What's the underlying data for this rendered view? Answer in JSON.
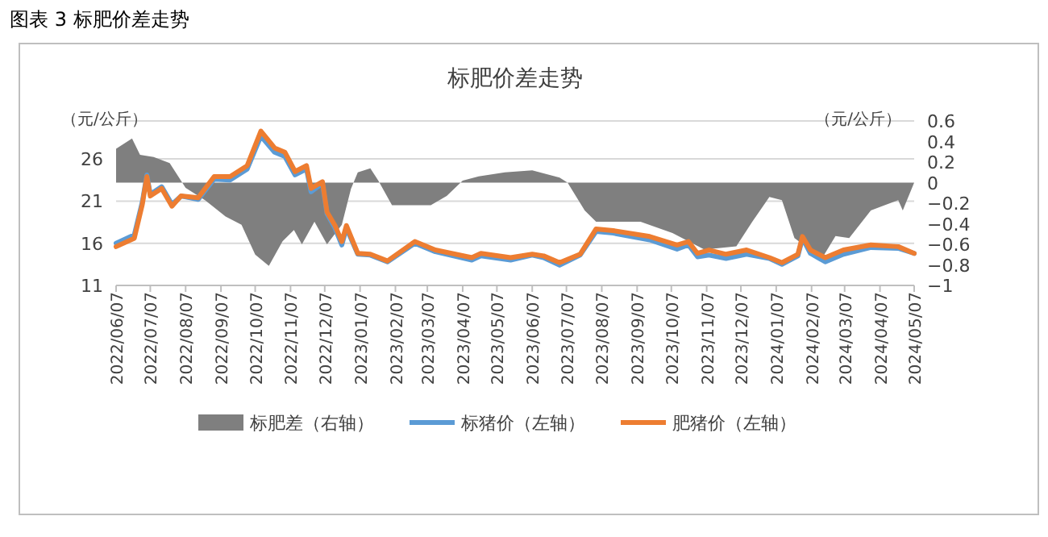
{
  "chart_data": {
    "type": "line",
    "title": "图表 3 标肥价差走势",
    "subtitle": "标肥价差走势",
    "ylabel": "（元/公斤）",
    "y2label": "（元/公斤）",
    "xlim": [
      "2022-06-07",
      "2024-05-07"
    ],
    "xticks": [
      {
        "value": "2022-06-07",
        "label": "2022/06/07"
      },
      {
        "value": "2022-07-07",
        "label": "2022/07/07"
      },
      {
        "value": "2022-08-07",
        "label": "2022/08/07"
      },
      {
        "value": "2022-09-07",
        "label": "2022/09/07"
      },
      {
        "value": "2022-10-07",
        "label": "2022/10/07"
      },
      {
        "value": "2022-11-07",
        "label": "2022/11/07"
      },
      {
        "value": "2022-12-07",
        "label": "2022/12/07"
      },
      {
        "value": "2023-01-07",
        "label": "2023/01/07"
      },
      {
        "value": "2023-02-07",
        "label": "2023/02/07"
      },
      {
        "value": "2023-03-07",
        "label": "2023/03/07"
      },
      {
        "value": "2023-04-07",
        "label": "2023/04/07"
      },
      {
        "value": "2023-05-07",
        "label": "2023/05/07"
      },
      {
        "value": "2023-06-07",
        "label": "2023/06/07"
      },
      {
        "value": "2023-07-07",
        "label": "2023/07/07"
      },
      {
        "value": "2023-08-07",
        "label": "2023/08/07"
      },
      {
        "value": "2023-09-07",
        "label": "2023/09/07"
      },
      {
        "value": "2023-10-07",
        "label": "2023/10/07"
      },
      {
        "value": "2023-11-07",
        "label": "2023/11/07"
      },
      {
        "value": "2023-12-07",
        "label": "2023/12/07"
      },
      {
        "value": "2024-01-07",
        "label": "2024/01/07"
      },
      {
        "value": "2024-02-07",
        "label": "2024/02/07"
      },
      {
        "value": "2024-03-07",
        "label": "2024/03/07"
      },
      {
        "value": "2024-04-07",
        "label": "2024/04/07"
      },
      {
        "value": "2024-05-07",
        "label": "2024/05/07"
      }
    ],
    "ylim": [
      11,
      30.5
    ],
    "yticks": [
      11,
      16,
      21,
      26
    ],
    "y2lim": [
      -1,
      0.6
    ],
    "y2ticks": [
      {
        "value": -1,
        "label": "−1"
      },
      {
        "value": -0.8,
        "label": "−0.8"
      },
      {
        "value": -0.6,
        "label": "−0.6"
      },
      {
        "value": -0.4,
        "label": "−0.4"
      },
      {
        "value": -0.2,
        "label": "−0.2"
      },
      0,
      0.2,
      0.4,
      0.6
    ],
    "grid": "y",
    "legend": "bottom",
    "series": [
      {
        "name": "标肥差（右轴）",
        "type": "area",
        "axis": "y2",
        "color": "#7f7f7f",
        "x": [
          "2022-06-07",
          "2022-06-21",
          "2022-06-28",
          "2022-07-10",
          "2022-07-24",
          "2022-08-07",
          "2022-08-24",
          "2022-09-11",
          "2022-09-25",
          "2022-10-07",
          "2022-10-19",
          "2022-10-31",
          "2022-11-10",
          "2022-11-17",
          "2022-11-28",
          "2022-12-09",
          "2022-12-22",
          "2022-12-30",
          "2023-01-05",
          "2023-01-16",
          "2023-01-23",
          "2023-02-04",
          "2023-02-24",
          "2023-03-10",
          "2023-03-24",
          "2023-04-07",
          "2023-04-21",
          "2023-05-14",
          "2023-06-07",
          "2023-07-01",
          "2023-07-08",
          "2023-07-23",
          "2023-08-02",
          "2023-09-10",
          "2023-10-08",
          "2023-11-05",
          "2023-12-03",
          "2023-12-17",
          "2024-01-01",
          "2024-01-12",
          "2024-01-23",
          "2024-02-16",
          "2024-02-28",
          "2024-03-11",
          "2024-03-30",
          "2024-04-23",
          "2024-04-27",
          "2024-05-07"
        ],
        "values": [
          0.33,
          0.43,
          0.27,
          0.25,
          0.19,
          -0.05,
          -0.17,
          -0.33,
          -0.41,
          -0.7,
          -0.81,
          -0.57,
          -0.46,
          -0.6,
          -0.38,
          -0.6,
          -0.41,
          -0.06,
          0.1,
          0.14,
          0.02,
          -0.22,
          -0.22,
          -0.22,
          -0.13,
          0.02,
          0.06,
          0.1,
          0.12,
          0.05,
          0,
          -0.27,
          -0.38,
          -0.38,
          -0.49,
          -0.65,
          -0.62,
          -0.38,
          -0.14,
          -0.17,
          -0.54,
          -0.74,
          -0.52,
          -0.54,
          -0.27,
          -0.17,
          -0.27,
          0
        ]
      },
      {
        "name": "标猪价（左轴）",
        "color": "#5b9bd5",
        "x": [
          "2022-06-07",
          "2022-06-23",
          "2022-06-30",
          "2022-07-04",
          "2022-07-07",
          "2022-07-17",
          "2022-07-26",
          "2022-08-03",
          "2022-08-18",
          "2022-09-01",
          "2022-09-15",
          "2022-09-30",
          "2022-10-12",
          "2022-10-24",
          "2022-11-02",
          "2022-11-11",
          "2022-11-21",
          "2022-11-25",
          "2022-12-05",
          "2022-12-09",
          "2022-12-16",
          "2022-12-22",
          "2022-12-26",
          "2023-01-05",
          "2023-01-16",
          "2023-01-31",
          "2023-02-24",
          "2023-03-14",
          "2023-04-15",
          "2023-04-23",
          "2023-05-19",
          "2023-06-07",
          "2023-06-17",
          "2023-07-01",
          "2023-07-19",
          "2023-08-02",
          "2023-08-17",
          "2023-09-18",
          "2023-10-12",
          "2023-10-22",
          "2023-10-30",
          "2023-11-09",
          "2023-11-24",
          "2023-12-12",
          "2024-01-01",
          "2024-01-12",
          "2024-01-26",
          "2024-01-30",
          "2024-02-06",
          "2024-02-19",
          "2024-03-06",
          "2024-03-30",
          "2024-04-23",
          "2024-05-07"
        ],
        "values": [
          16.0,
          17.0,
          20.9,
          24.1,
          21.8,
          22.7,
          20.6,
          21.6,
          21.2,
          23.6,
          23.5,
          24.8,
          28.7,
          26.8,
          26.3,
          24.1,
          24.8,
          22.1,
          23.1,
          19.5,
          17.8,
          15.8,
          17.8,
          14.7,
          14.6,
          13.8,
          16.0,
          15.0,
          14.0,
          14.5,
          14.0,
          14.6,
          14.3,
          13.4,
          14.6,
          17.4,
          17.2,
          16.4,
          15.3,
          15.8,
          14.4,
          14.6,
          14.2,
          14.7,
          14.2,
          13.5,
          14.5,
          16.6,
          14.8,
          13.8,
          14.7,
          15.5,
          15.4,
          14.8
        ]
      },
      {
        "name": "肥猪价（左轴）",
        "color": "#ed7d31",
        "x": [
          "2022-06-07",
          "2022-06-23",
          "2022-06-30",
          "2022-07-04",
          "2022-07-07",
          "2022-07-17",
          "2022-07-26",
          "2022-08-03",
          "2022-08-18",
          "2022-09-01",
          "2022-09-15",
          "2022-09-30",
          "2022-10-12",
          "2022-10-24",
          "2022-11-02",
          "2022-11-11",
          "2022-11-21",
          "2022-11-25",
          "2022-12-05",
          "2022-12-09",
          "2022-12-16",
          "2022-12-22",
          "2022-12-26",
          "2023-01-05",
          "2023-01-16",
          "2023-01-31",
          "2023-02-24",
          "2023-03-14",
          "2023-04-15",
          "2023-04-23",
          "2023-05-19",
          "2023-06-07",
          "2023-06-17",
          "2023-07-01",
          "2023-07-19",
          "2023-08-02",
          "2023-08-17",
          "2023-09-18",
          "2023-10-12",
          "2023-10-22",
          "2023-10-30",
          "2023-11-09",
          "2023-11-24",
          "2023-12-12",
          "2024-01-01",
          "2024-01-12",
          "2024-01-26",
          "2024-01-30",
          "2024-02-06",
          "2024-02-19",
          "2024-03-06",
          "2024-03-30",
          "2024-04-23",
          "2024-05-07"
        ],
        "values": [
          15.6,
          16.6,
          20.6,
          23.9,
          21.6,
          22.5,
          20.4,
          21.6,
          21.4,
          23.9,
          23.9,
          25.2,
          29.3,
          27.3,
          26.8,
          24.5,
          25.2,
          22.5,
          23.3,
          19.7,
          18.1,
          16.2,
          18.1,
          14.8,
          14.7,
          13.9,
          16.2,
          15.2,
          14.3,
          14.8,
          14.3,
          14.7,
          14.5,
          13.7,
          14.7,
          17.7,
          17.5,
          16.8,
          15.8,
          16.2,
          14.8,
          15.2,
          14.7,
          15.2,
          14.3,
          13.7,
          14.7,
          16.8,
          15.2,
          14.3,
          15.2,
          15.8,
          15.6,
          14.8
        ]
      }
    ]
  }
}
